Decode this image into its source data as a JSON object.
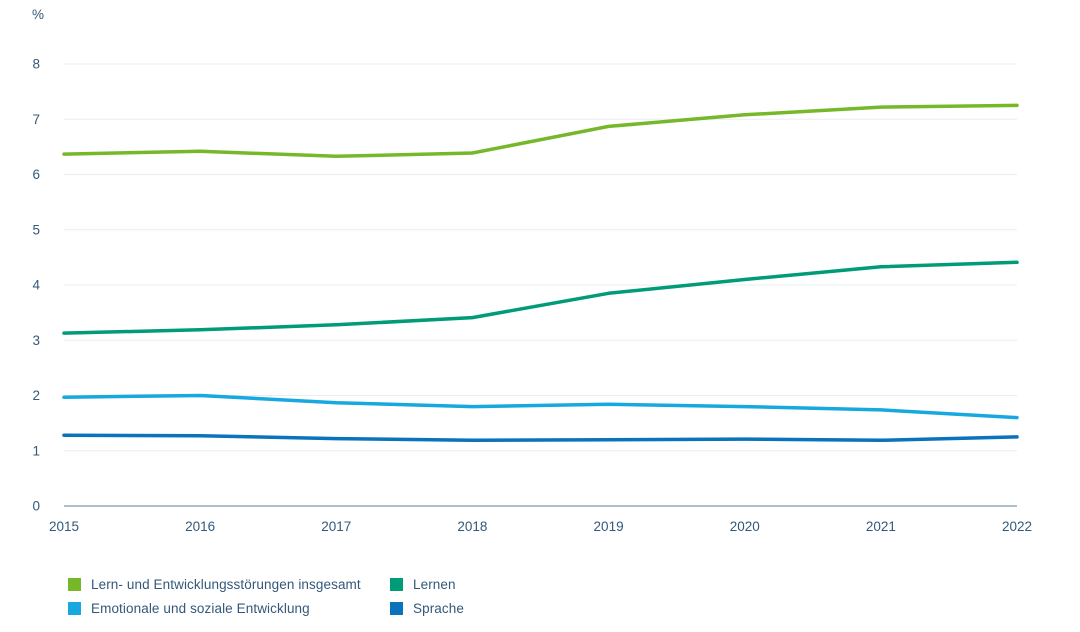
{
  "chart_data": {
    "type": "line",
    "title": "",
    "unit_label": "%",
    "x": [
      2015,
      2016,
      2017,
      2018,
      2019,
      2020,
      2021,
      2022
    ],
    "series": [
      {
        "name": "Lern- und Entwicklungsstörungen insgesamt",
        "color": "#76b82a",
        "values": [
          6.37,
          6.42,
          6.33,
          6.39,
          6.87,
          7.08,
          7.22,
          7.25
        ]
      },
      {
        "name": "Lernen",
        "color": "#009b77",
        "values": [
          3.13,
          3.19,
          3.28,
          3.41,
          3.85,
          4.1,
          4.33,
          4.41
        ]
      },
      {
        "name": "Emotionale und soziale Entwicklung",
        "color": "#18a8e0",
        "values": [
          1.97,
          2.0,
          1.87,
          1.8,
          1.84,
          1.8,
          1.74,
          1.6
        ]
      },
      {
        "name": "Sprache",
        "color": "#0b72bc",
        "values": [
          1.28,
          1.27,
          1.22,
          1.19,
          1.2,
          1.21,
          1.19,
          1.25
        ]
      }
    ],
    "ylim": [
      0,
      8
    ],
    "ytick_step": 1,
    "grid": true,
    "legend_position": "bottom"
  },
  "colors": {
    "axis_text": "#33587a",
    "grid": "#e9edf1",
    "baseline": "#93a9bc",
    "background": "#ffffff"
  }
}
